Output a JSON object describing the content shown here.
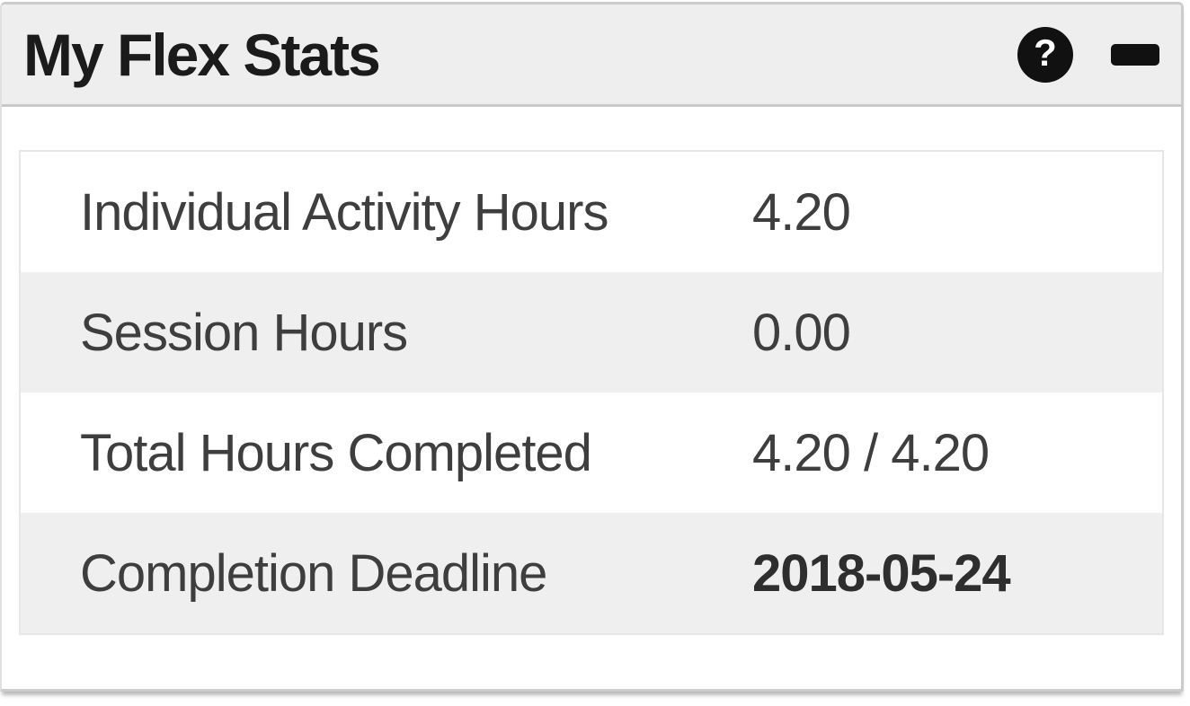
{
  "widget": {
    "title": "My Flex Stats",
    "header_icons": [
      {
        "name": "help-icon",
        "glyph": "?"
      },
      {
        "name": "minimize-icon",
        "glyph": "−"
      }
    ]
  },
  "stats": {
    "rows": [
      {
        "label": "Individual Activity Hours",
        "value": "4.20"
      },
      {
        "label": "Session Hours",
        "value": "0.00"
      },
      {
        "label": "Total Hours Completed",
        "value": "4.20 / 4.20"
      },
      {
        "label": "Completion Deadline",
        "value": "2018-05-24"
      }
    ]
  },
  "colors": {
    "header_bg": "#eeeeee",
    "row_stripe_bg": "#efefef",
    "panel_border": "#cccccc",
    "table_border": "#e7e7e7",
    "icon_bg": "#111111",
    "title_text": "#1b1b1b",
    "body_text": "#3e3e3e"
  }
}
